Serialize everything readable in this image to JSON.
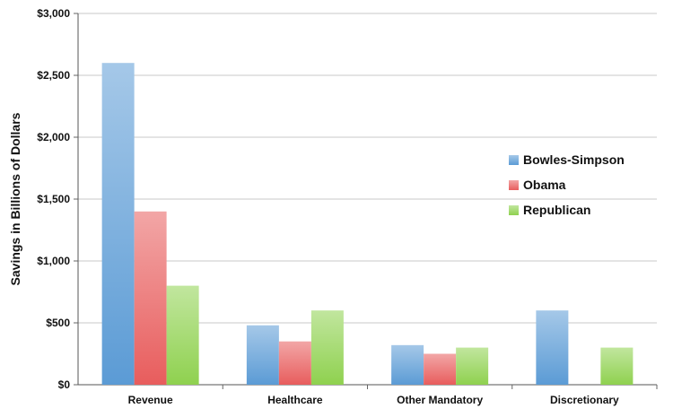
{
  "chart_data": {
    "type": "bar",
    "title": "",
    "xlabel": "",
    "ylabel": "Savings in Billions of Dollars",
    "categories": [
      "Revenue",
      "Healthcare",
      "Other Mandatory",
      "Discretionary"
    ],
    "series": [
      {
        "name": "Bowles-Simpson",
        "values": [
          2600,
          480,
          320,
          600
        ],
        "color": "#5b9bd5"
      },
      {
        "name": "Obama",
        "values": [
          1400,
          350,
          250,
          0
        ],
        "color": "#e85d5d"
      },
      {
        "name": "Republican",
        "values": [
          800,
          600,
          300,
          300
        ],
        "color": "#8fd14f"
      }
    ],
    "ylim": [
      0,
      3000
    ],
    "yticks": [
      0,
      500,
      1000,
      1500,
      2000,
      2500,
      3000
    ],
    "ytick_labels": [
      "$0",
      "$500",
      "$1,000",
      "$1,500",
      "$2,000",
      "$2,500",
      "$3,000"
    ],
    "grid": true,
    "legend_position": "right"
  }
}
